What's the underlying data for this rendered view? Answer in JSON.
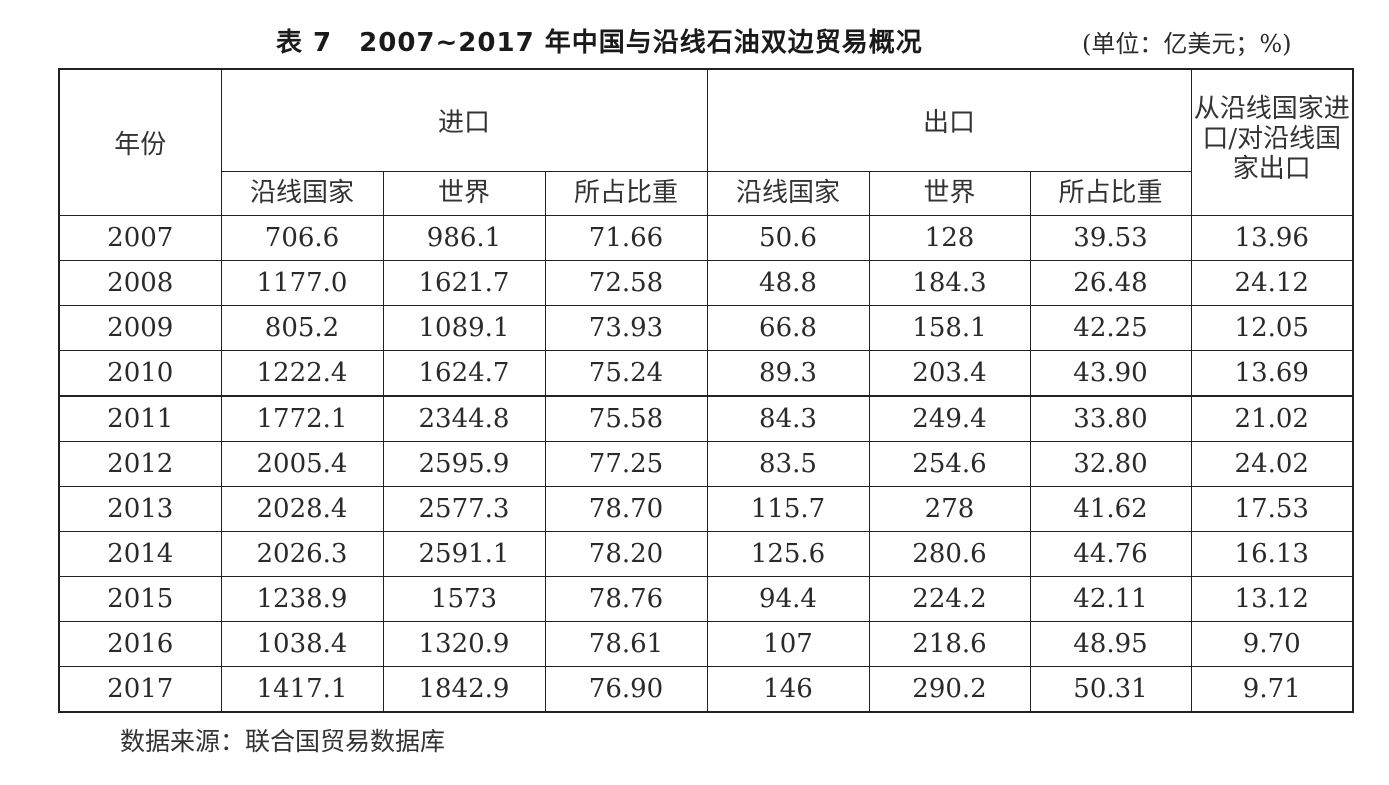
{
  "title": "表 7　2007~2017 年中国与沿线石油双边贸易概况",
  "unit": "(单位：亿美元；%)",
  "headers": {
    "year": "年份",
    "import": "进口",
    "export": "出口",
    "ratio": "从沿线国家进口/对沿线国家出口",
    "sub": [
      "沿线国家",
      "世界",
      "所占比重",
      "沿线国家",
      "世界",
      "所占比重"
    ]
  },
  "rows": [
    [
      "2007",
      "706.6",
      "986.1",
      "71.66",
      "50.6",
      "128",
      "39.53",
      "13.96"
    ],
    [
      "2008",
      "1177.0",
      "1621.7",
      "72.58",
      "48.8",
      "184.3",
      "26.48",
      "24.12"
    ],
    [
      "2009",
      "805.2",
      "1089.1",
      "73.93",
      "66.8",
      "158.1",
      "42.25",
      "12.05"
    ],
    [
      "2010",
      "1222.4",
      "1624.7",
      "75.24",
      "89.3",
      "203.4",
      "43.90",
      "13.69"
    ],
    [
      "2011",
      "1772.1",
      "2344.8",
      "75.58",
      "84.3",
      "249.4",
      "33.80",
      "21.02"
    ],
    [
      "2012",
      "2005.4",
      "2595.9",
      "77.25",
      "83.5",
      "254.6",
      "32.80",
      "24.02"
    ],
    [
      "2013",
      "2028.4",
      "2577.3",
      "78.70",
      "115.7",
      "278",
      "41.62",
      "17.53"
    ],
    [
      "2014",
      "2026.3",
      "2591.1",
      "78.20",
      "125.6",
      "280.6",
      "44.76",
      "16.13"
    ],
    [
      "2015",
      "1238.9",
      "1573",
      "78.76",
      "94.4",
      "224.2",
      "42.11",
      "13.12"
    ],
    [
      "2016",
      "1038.4",
      "1320.9",
      "78.61",
      "107",
      "218.6",
      "48.95",
      "9.70"
    ],
    [
      "2017",
      "1417.1",
      "1842.9",
      "76.90",
      "146",
      "290.2",
      "50.31",
      "9.71"
    ]
  ],
  "source": "数据来源：联合国贸易数据库"
}
